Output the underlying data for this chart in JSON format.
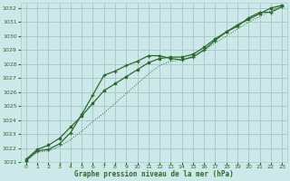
{
  "title": "Graphe pression niveau de la mer (hPa)",
  "background_color": "#cce8e8",
  "grid_color": "#aacccc",
  "line_color": "#2d6a2d",
  "xlim": [
    -0.5,
    23.5
  ],
  "ylim": [
    1021,
    1032.4
  ],
  "xticks": [
    0,
    1,
    2,
    3,
    4,
    5,
    6,
    7,
    8,
    9,
    10,
    11,
    12,
    13,
    14,
    15,
    16,
    17,
    18,
    19,
    20,
    21,
    22,
    23
  ],
  "yticks": [
    1021,
    1022,
    1023,
    1024,
    1025,
    1026,
    1027,
    1028,
    1029,
    1030,
    1031,
    1032
  ],
  "line_plus_x": [
    0,
    1,
    2,
    3,
    4,
    5,
    6,
    7,
    8,
    9,
    10,
    11,
    12,
    13,
    14,
    15,
    16,
    17,
    18,
    19,
    20,
    21,
    22,
    23
  ],
  "line_plus_y": [
    1021.1,
    1021.8,
    1021.9,
    1022.3,
    1023.1,
    1024.4,
    1025.8,
    1027.2,
    1027.5,
    1027.9,
    1028.2,
    1028.6,
    1028.6,
    1028.4,
    1028.3,
    1028.5,
    1029.0,
    1029.7,
    1030.3,
    1030.7,
    1031.3,
    1031.7,
    1031.7,
    1032.1
  ],
  "line_dot_x": [
    0,
    1,
    2,
    3,
    4,
    5,
    6,
    7,
    8,
    9,
    10,
    11,
    12,
    13,
    14,
    15,
    16,
    17,
    18,
    19,
    20,
    21,
    22,
    23
  ],
  "line_dot_y": [
    1021.1,
    1021.7,
    1021.8,
    1022.1,
    1022.6,
    1023.2,
    1023.9,
    1024.5,
    1025.2,
    1025.9,
    1026.6,
    1027.3,
    1027.9,
    1028.2,
    1028.3,
    1028.6,
    1029.0,
    1029.5,
    1030.0,
    1030.5,
    1031.0,
    1031.4,
    1031.8,
    1032.2
  ],
  "line_sq_x": [
    0,
    1,
    2,
    3,
    4,
    5,
    6,
    7,
    8,
    9,
    10,
    11,
    12,
    13,
    14,
    15,
    16,
    17,
    18,
    19,
    20,
    21,
    22,
    23
  ],
  "line_sq_y": [
    1021.2,
    1021.9,
    1022.2,
    1022.7,
    1023.5,
    1024.3,
    1025.2,
    1026.1,
    1026.6,
    1027.1,
    1027.6,
    1028.1,
    1028.4,
    1028.5,
    1028.5,
    1028.7,
    1029.2,
    1029.8,
    1030.3,
    1030.8,
    1031.2,
    1031.6,
    1032.0,
    1032.2
  ]
}
